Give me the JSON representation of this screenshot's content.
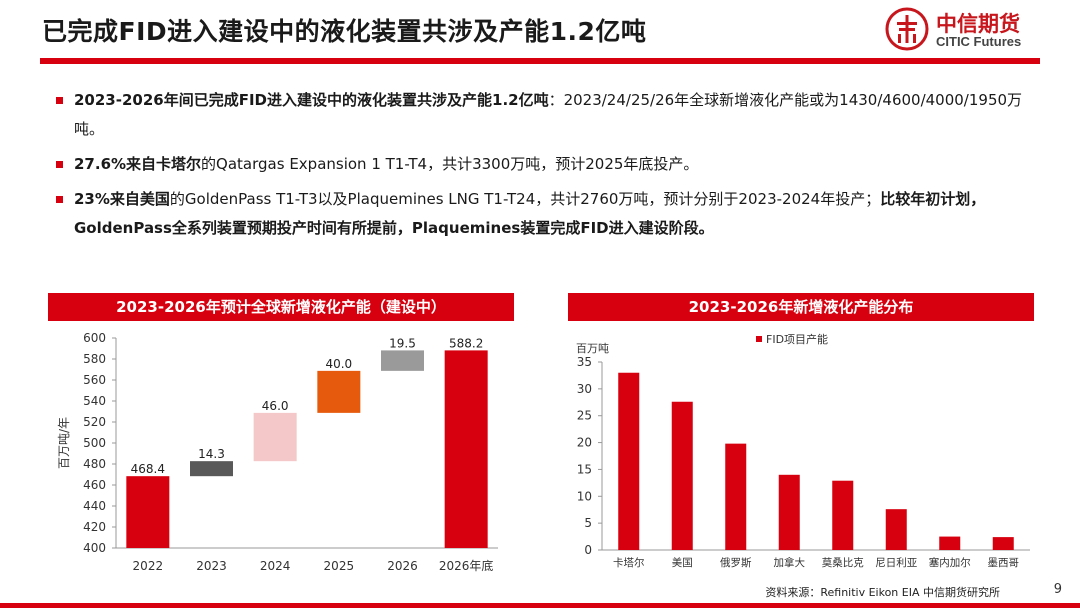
{
  "header": {
    "title": "已完成FID进入建设中的液化装置共涉及产能1.2亿吨",
    "logo_name": "中信期货",
    "logo_en": "CITIC Futures"
  },
  "bullets": [
    {
      "bold": "2023-2026年间已完成FID进入建设中的液化装置共涉及产能1.2亿吨",
      "rest": "：2023/24/25/26年全球新增液化产能或为1430/4600/4000/1950万吨。"
    },
    {
      "bold": "27.6%来自卡塔尔",
      "rest": "的Qatargas Expansion 1 T1-T4，共计3300万吨，预计2025年底投产。"
    },
    {
      "bold": "23%来自美国",
      "rest": "的GoldenPass T1-T3以及Plaquemines LNG T1-T24，共计2760万吨，预计分别于2023-2024年投产；",
      "bold2": "比较年初计划，GoldenPass全系列装置预期投产时间有所提前，Plaquemines装置完成FID进入建设阶段。"
    }
  ],
  "colors": {
    "accent": "#d7000f"
  },
  "chart_data": [
    {
      "type": "waterfall",
      "title": "2023-2026年预计全球新增液化产能（建设中）",
      "ylabel": "百万吨/年",
      "ylim": [
        400,
        600
      ],
      "yticks": [
        400,
        420,
        440,
        460,
        480,
        500,
        520,
        540,
        560,
        580,
        600
      ],
      "categories": [
        "2022",
        "2023",
        "2024",
        "2025",
        "2026",
        "2026年底"
      ],
      "bars": [
        {
          "base": 0,
          "value": 468.4,
          "label": "468.4",
          "color": "#d7000f"
        },
        {
          "base": 468.4,
          "value": 14.3,
          "label": "14.3",
          "color": "#595959"
        },
        {
          "base": 482.7,
          "value": 46.0,
          "label": "46.0",
          "color": "#f4c7c8"
        },
        {
          "base": 528.7,
          "value": 40.0,
          "label": "40.0",
          "color": "#e55a0c"
        },
        {
          "base": 568.7,
          "value": 19.5,
          "label": "19.5",
          "color": "#9a9a9a"
        },
        {
          "base": 0,
          "value": 588.2,
          "label": "588.2",
          "color": "#d7000f"
        }
      ]
    },
    {
      "type": "bar",
      "title": "2023-2026年新增液化产能分布",
      "ylabel": "百万吨",
      "legend": "FID项目产能",
      "ylim": [
        0,
        35
      ],
      "yticks": [
        0,
        5,
        10,
        15,
        20,
        25,
        30,
        35
      ],
      "categories": [
        "卡塔尔",
        "美国",
        "俄罗斯",
        "加拿大",
        "莫桑比克",
        "尼日利亚",
        "塞内加尔",
        "墨西哥"
      ],
      "values": [
        33,
        27.6,
        19.8,
        14,
        12.9,
        7.6,
        2.5,
        2.4
      ],
      "color": "#d7000f"
    }
  ],
  "footer": {
    "source": "资料来源：Refinitiv Eikon  EIA  中信期货研究所",
    "page": "9"
  }
}
